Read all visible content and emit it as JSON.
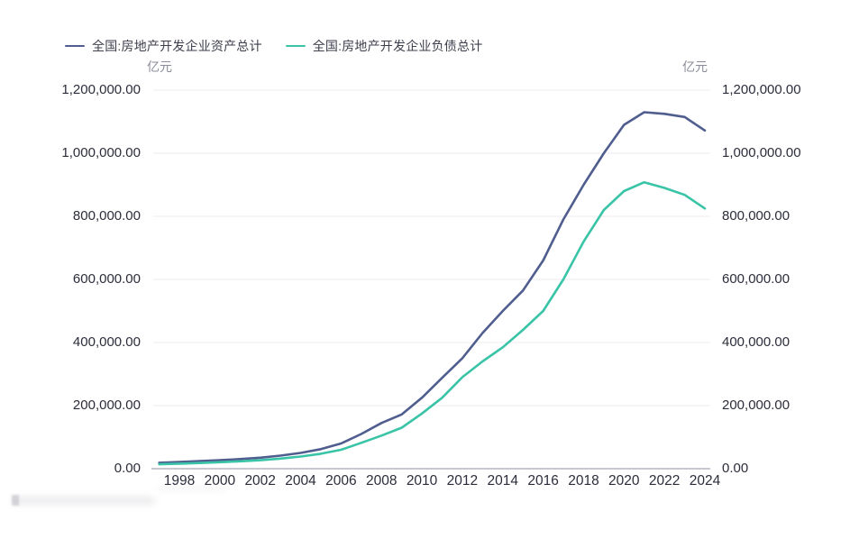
{
  "legend": [
    {
      "label": "全国:房地产开发企业资产总计",
      "color": "#4F5D8F"
    },
    {
      "label": "全国:房地产开发企业负债总计",
      "color": "#3AC4A7"
    }
  ],
  "axis_units": {
    "left": "亿元",
    "right": "亿元"
  },
  "colors": {
    "assets_line": "#4F5D8F",
    "liabilities_line": "#3AC4A7",
    "gridline": "#ededf2",
    "axis_line": "#c7c8d2",
    "tick_text": "#2b2d3a",
    "unit_text": "#8a8c99"
  },
  "chart_data": {
    "type": "line",
    "title": "",
    "xlabel": "",
    "ylabel_left": "亿元",
    "ylabel_right": "亿元",
    "grid": "horizontal",
    "legend_position": "top-left",
    "ylim": [
      0,
      1200000
    ],
    "x": [
      1997,
      1998,
      1999,
      2000,
      2001,
      2002,
      2003,
      2004,
      2005,
      2006,
      2007,
      2008,
      2009,
      2010,
      2011,
      2012,
      2013,
      2014,
      2015,
      2016,
      2017,
      2018,
      2019,
      2020,
      2021,
      2022,
      2023,
      2024
    ],
    "series": [
      {
        "name": "全国:房地产开发企业资产总计",
        "color": "#4F5D8F",
        "values": [
          19000,
          21500,
          24000,
          27000,
          30500,
          35000,
          41500,
          50000,
          62000,
          80000,
          110000,
          145000,
          172000,
          225000,
          288000,
          350000,
          430000,
          500000,
          565000,
          660000,
          790000,
          900000,
          1000000,
          1090000,
          1130000,
          1125000,
          1115000,
          1072000
        ]
      },
      {
        "name": "全国:房地产开发企业负债总计",
        "color": "#3AC4A7",
        "values": [
          14000,
          16000,
          18000,
          20500,
          23500,
          27000,
          32000,
          38500,
          47500,
          60000,
          82000,
          105000,
          130000,
          175000,
          225000,
          290000,
          340000,
          385000,
          440000,
          500000,
          600000,
          720000,
          820000,
          880000,
          908000,
          890000,
          868000,
          825000
        ]
      }
    ],
    "y_ticks": [
      0,
      200000,
      400000,
      600000,
      800000,
      1000000,
      1200000
    ],
    "y_tick_labels": [
      "0.00",
      "200,000.00",
      "400,000.00",
      "600,000.00",
      "800,000.00",
      "1,000,000.00",
      "1,200,000.00"
    ],
    "x_tick_years": [
      1998,
      2000,
      2002,
      2004,
      2006,
      2008,
      2010,
      2012,
      2014,
      2016,
      2018,
      2020,
      2022,
      2024
    ],
    "x_tick_labels": [
      "1998",
      "2000",
      "2002",
      "2004",
      "2006",
      "2008",
      "2010",
      "2012",
      "2014",
      "2016",
      "2018",
      "2020",
      "2022",
      "2024"
    ]
  }
}
